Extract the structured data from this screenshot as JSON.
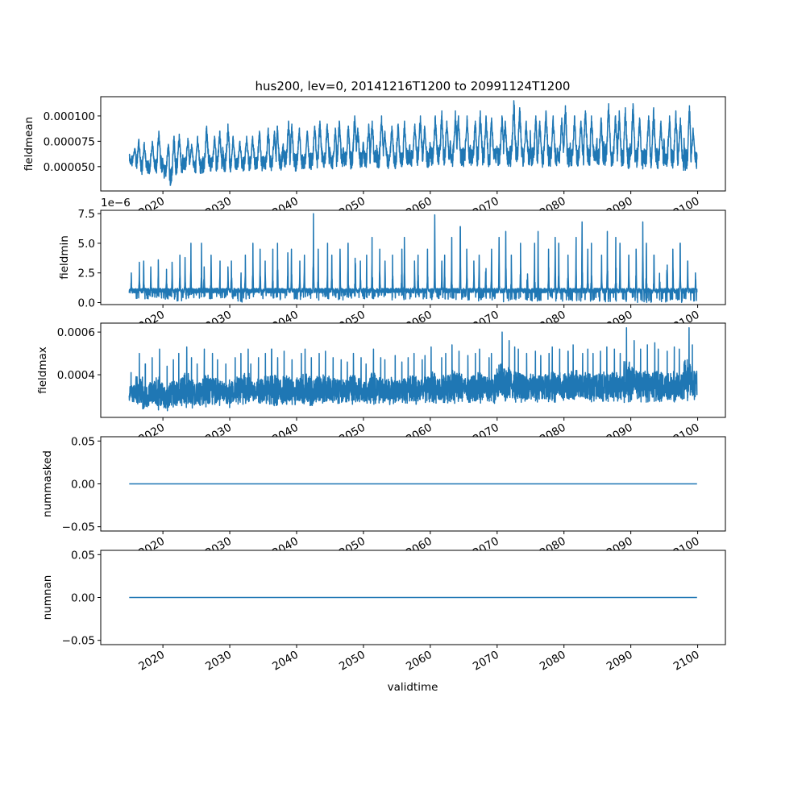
{
  "chart_data": {
    "type": "line",
    "title": "hus200, lev=0, 20141216T1200 to 20991124T1200",
    "xlabel": "validtime",
    "x_tick_labels": [
      "2020",
      "2030",
      "2040",
      "2050",
      "2060",
      "2070",
      "2080",
      "2090",
      "2100"
    ],
    "x_ticks": [
      2020,
      2030,
      2040,
      2050,
      2060,
      2070,
      2080,
      2090,
      2100
    ],
    "xlim": [
      2010.7,
      2104.15
    ],
    "x_start": 2014.96,
    "x_end": 2099.9,
    "years": "2015-2099",
    "line_color": "#1f77b4",
    "grid": false,
    "panels": [
      {
        "ylabel": "fieldmean",
        "style": "seasonal",
        "multiplier": 1e-06,
        "ylim": [
          26,
          119
        ],
        "y_ticks": [
          50,
          75,
          100
        ],
        "y_tick_labels": [
          "0.000050",
          "0.000075",
          "0.000100"
        ],
        "offset_text": "",
        "yearly_max": [
          68,
          77,
          74,
          75,
          85,
          72,
          80,
          82,
          78,
          72,
          80,
          90,
          80,
          85,
          92,
          80,
          75,
          80,
          80,
          85,
          88,
          85,
          90,
          95,
          92,
          88,
          85,
          90,
          95,
          92,
          88,
          95,
          90,
          100,
          88,
          92,
          95,
          100,
          85,
          90,
          92,
          95,
          92,
          100,
          90,
          100,
          105,
          95,
          105,
          100,
          100,
          95,
          105,
          100,
          98,
          100,
          95,
          115,
          108,
          95,
          100,
          95,
          105,
          100,
          98,
          110,
          100,
          95,
          105,
          100,
          98,
          112,
          100,
          105,
          108,
          112,
          98,
          100,
          108,
          95,
          100,
          105,
          98,
          110,
          88
        ],
        "yearly_min": [
          50,
          42,
          42,
          43,
          42,
          38,
          30,
          42,
          44,
          43,
          43,
          42,
          44,
          44,
          45,
          44,
          45,
          45,
          46,
          45,
          45,
          46,
          46,
          47,
          45,
          47,
          46,
          47,
          48,
          47,
          47,
          48,
          48,
          47,
          48,
          48,
          49,
          48,
          48,
          48,
          48,
          49,
          50,
          50,
          49,
          50,
          50,
          50,
          50,
          49,
          50,
          50,
          50,
          49,
          50,
          50,
          49,
          50,
          50,
          50,
          50,
          49,
          50,
          50,
          50,
          49,
          50,
          50,
          49,
          50,
          49,
          50,
          49,
          48,
          48,
          48,
          47,
          48,
          47,
          48,
          47,
          48,
          46,
          45,
          48
        ]
      },
      {
        "ylabel": "fieldmin",
        "style": "spiky",
        "multiplier": 1e-06,
        "ylim": [
          -0.17,
          7.78
        ],
        "y_ticks": [
          0,
          2.5,
          5,
          7.5
        ],
        "y_tick_labels": [
          "0.0",
          "2.5",
          "5.0",
          "7.5"
        ],
        "offset_text": "1e−6",
        "yearly_max": [
          2.5,
          3.4,
          3.5,
          3.0,
          3.6,
          2.8,
          3.4,
          4.0,
          3.8,
          5.0,
          5.0,
          3.0,
          4.0,
          3.5,
          3.0,
          3.5,
          2.5,
          4.0,
          5.0,
          4.5,
          3.5,
          4.5,
          5.0,
          4.2,
          4.5,
          3.5,
          4.0,
          7.5,
          4.5,
          5.0,
          4.0,
          4.5,
          5.0,
          6.0,
          3.5,
          4.0,
          5.5,
          4.5,
          3.5,
          4.0,
          4.5,
          5.5,
          3.5,
          4.0,
          4.5,
          7.4,
          3.5,
          4.0,
          5.5,
          6.4,
          4.5,
          3.5,
          4.0,
          5.0,
          4.5,
          5.5,
          6.0,
          4.0,
          5.0,
          4.5,
          5.0,
          6.0,
          4.5,
          5.5,
          5.0,
          4.0,
          5.5,
          6.8,
          4.5,
          5.0,
          4.0,
          6.0,
          5.5,
          5.0,
          4.0,
          4.5,
          6.8,
          5.0,
          4.0,
          3.5,
          5.5,
          4.5,
          5.0,
          3.5,
          2.5
        ],
        "yearly_min": [
          0.8,
          0.3,
          0.3,
          0.4,
          0.3,
          0.2,
          0.3,
          0.1,
          0.3,
          0.4,
          0.3,
          0.2,
          0.3,
          0.4,
          0.3,
          0.3,
          0.0,
          0.3,
          0.3,
          0.4,
          0.3,
          0.3,
          0.2,
          0.3,
          0.3,
          0.2,
          0.3,
          0.3,
          0.2,
          0.3,
          0.3,
          0.2,
          0.3,
          0.3,
          0.2,
          0.3,
          0.2,
          0.3,
          0.3,
          0.2,
          0.3,
          0.2,
          0.2,
          0.3,
          0.2,
          0.2,
          0.3,
          0.2,
          0.2,
          0.1,
          0.2,
          0.2,
          0.1,
          0.2,
          0.2,
          0.1,
          0.0,
          0.2,
          0.1,
          0.2,
          0.1,
          0.1,
          0.2,
          0.1,
          0.1,
          0.2,
          0.1,
          0.1,
          0.1,
          0.1,
          0.1,
          0.0,
          0.1,
          0.1,
          0.0,
          0.1,
          0.0,
          0.0,
          0.0,
          0.0,
          0.0,
          0.0,
          0.0,
          0.0,
          0.0
        ]
      },
      {
        "ylabel": "fieldmax",
        "style": "dense",
        "multiplier": 1e-06,
        "ylim": [
          200,
          642
        ],
        "y_ticks": [
          400,
          600
        ],
        "y_tick_labels": [
          "0.0004",
          "0.0006"
        ],
        "offset_text": "",
        "yearly_max": [
          410,
          500,
          450,
          480,
          520,
          440,
          470,
          500,
          530,
          480,
          450,
          520,
          500,
          470,
          450,
          480,
          500,
          520,
          450,
          480,
          500,
          520,
          480,
          510,
          470,
          500,
          520,
          480,
          500,
          510,
          480,
          470,
          460,
          500,
          480,
          450,
          520,
          480,
          470,
          490,
          460,
          480,
          500,
          470,
          490,
          530,
          480,
          500,
          540,
          510,
          490,
          500,
          520,
          480,
          500,
          600,
          560,
          530,
          520,
          500,
          510,
          490,
          500,
          530,
          520,
          510,
          540,
          500,
          520,
          500,
          510,
          530,
          520,
          500,
          620,
          560,
          520,
          540,
          550,
          520,
          510,
          530,
          520,
          620,
          540
        ],
        "yearly_min": [
          270,
          250,
          230,
          240,
          235,
          230,
          240,
          250,
          245,
          240,
          250,
          245,
          250,
          255,
          250,
          245,
          250,
          255,
          260,
          250,
          255,
          250,
          255,
          260,
          255,
          250,
          260,
          255,
          260,
          255,
          260,
          255,
          260,
          260,
          255,
          260,
          260,
          265,
          260,
          260,
          265,
          260,
          260,
          265,
          260,
          265,
          265,
          260,
          265,
          270,
          265,
          260,
          265,
          270,
          265,
          270,
          265,
          270,
          265,
          270,
          265,
          270,
          270,
          265,
          270,
          270,
          265,
          270,
          270,
          265,
          270,
          270,
          275,
          270,
          270,
          275,
          270,
          270,
          275,
          270,
          275,
          270,
          270,
          275,
          280
        ]
      },
      {
        "ylabel": "nummasked",
        "style": "flat",
        "multiplier": 1,
        "ylim": [
          -0.055,
          0.055
        ],
        "y_ticks": [
          -0.05,
          0,
          0.05
        ],
        "y_tick_labels": [
          "−0.05",
          "0.00",
          "0.05"
        ],
        "offset_text": "",
        "value": 0
      },
      {
        "ylabel": "numnan",
        "style": "flat",
        "multiplier": 1,
        "ylim": [
          -0.055,
          0.055
        ],
        "y_ticks": [
          -0.05,
          0,
          0.05
        ],
        "y_tick_labels": [
          "−0.05",
          "0.00",
          "0.05"
        ],
        "offset_text": "",
        "value": 0
      }
    ]
  }
}
